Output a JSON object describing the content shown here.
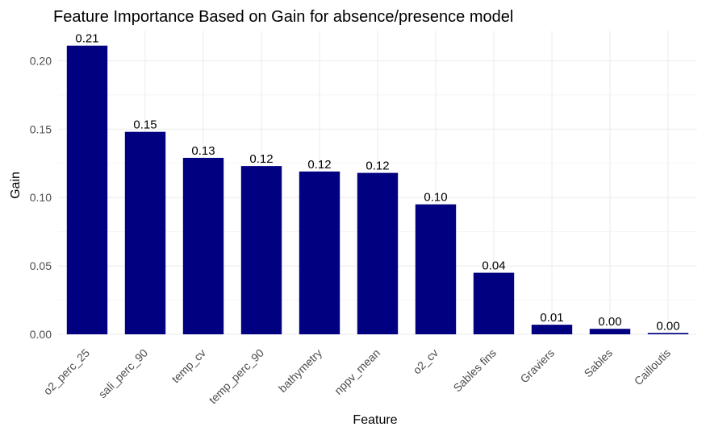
{
  "chart_data": {
    "type": "bar",
    "title": "Feature Importance Based on Gain for absence/presence model",
    "xlabel": "Feature",
    "ylabel": "Gain",
    "categories": [
      "o2_perc_25",
      "sali_perc_90",
      "temp_cv",
      "temp_perc_90",
      "bathymetry",
      "nppv_mean",
      "o2_cv",
      "Sables fins",
      "Graviers",
      "Sables",
      "Cailloutis"
    ],
    "values": [
      0.211,
      0.148,
      0.129,
      0.123,
      0.119,
      0.118,
      0.095,
      0.045,
      0.007,
      0.004,
      0.001
    ],
    "data_labels": [
      "0.21",
      "0.15",
      "0.13",
      "0.12",
      "0.12",
      "0.12",
      "0.10",
      "0.04",
      "0.01",
      "0.00",
      "0.00"
    ],
    "yticks": [
      0,
      0.05,
      0.1,
      0.15,
      0.2
    ],
    "ytick_labels": [
      "0.00",
      "0.05",
      "0.10",
      "0.15",
      "0.20"
    ],
    "ylim": [
      0,
      0.222
    ],
    "grid": true,
    "legend": "none",
    "bar_color": "#000080"
  }
}
